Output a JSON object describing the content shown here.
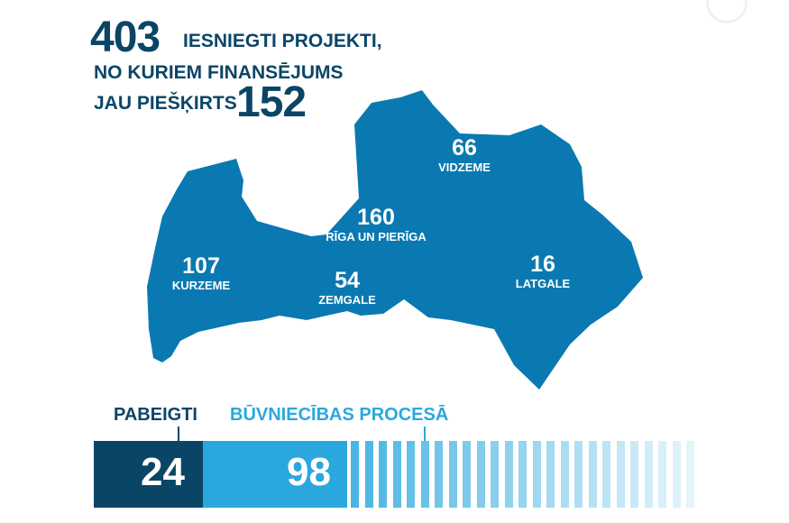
{
  "header": {
    "submitted_count": "403",
    "submitted_line1": "IESNIEGTI PROJEKTI,",
    "submitted_line2": "NO KURIEM FINANSĒJUMS",
    "funded_label": "JAU PIEŠĶIRTS",
    "funded_count": "152"
  },
  "regions": [
    {
      "value": "66",
      "name": "VIDZEME"
    },
    {
      "value": "160",
      "name": "RĪGA UN PIERĪGA"
    },
    {
      "value": "107",
      "name": "KURZEME"
    },
    {
      "value": "54",
      "name": "ZEMGALE"
    },
    {
      "value": "16",
      "name": "LATGALE"
    }
  ],
  "progress": {
    "completed_label": "PABEIGTI",
    "completed_value": "24",
    "in_progress_label": "BŪVNIECĪBAS PROCESĀ",
    "in_progress_value": "98"
  },
  "colors": {
    "dark_blue": "#0b4566",
    "map_blue": "#0a79b1",
    "light_blue": "#2aa8de"
  }
}
